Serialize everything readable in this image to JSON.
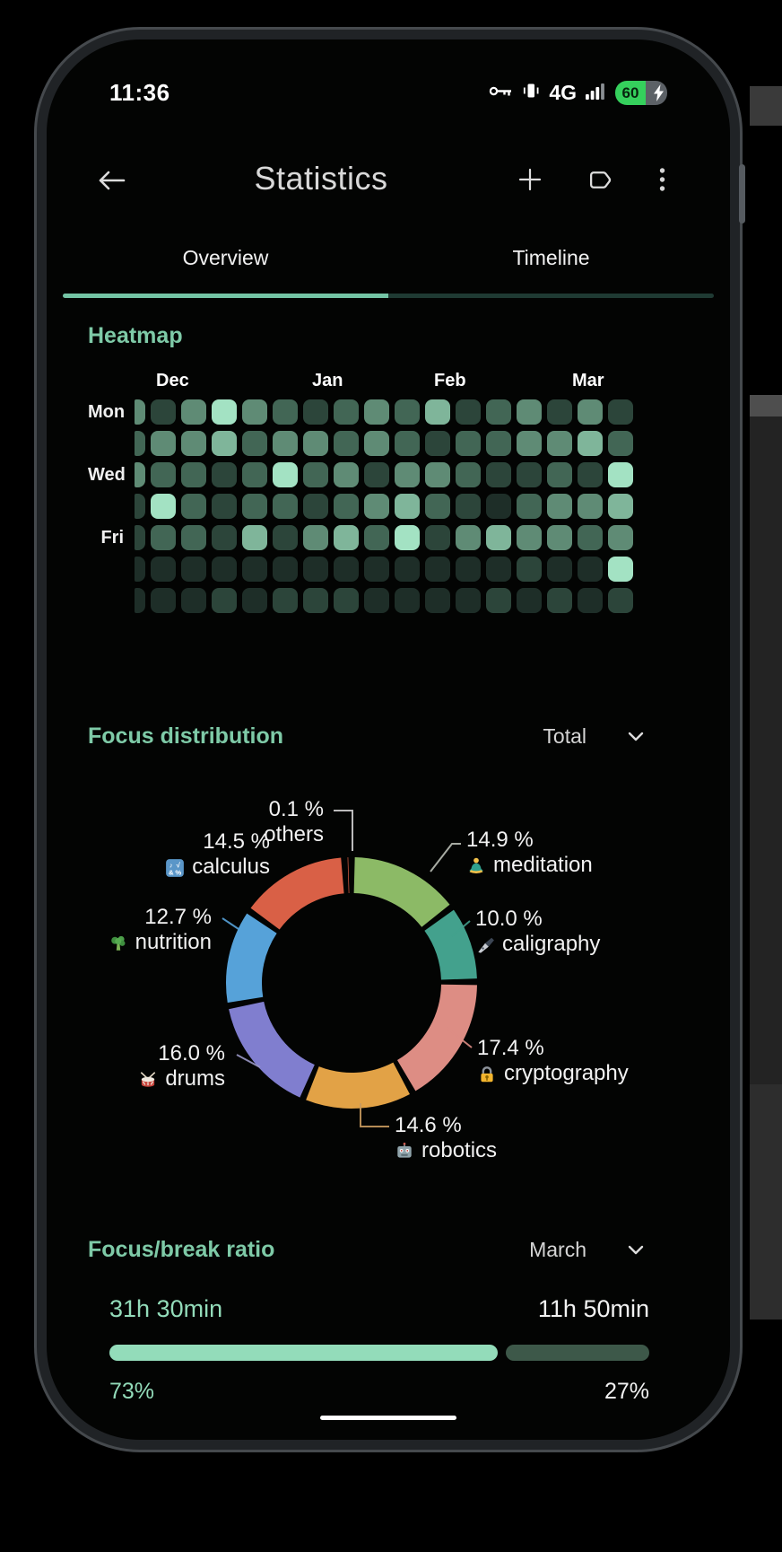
{
  "status_bar": {
    "time": "11:36",
    "network": "4G",
    "battery_percent": "60",
    "icons": [
      "key-icon",
      "vibrate-icon",
      "signal-strength-icon",
      "battery-charging-icon"
    ]
  },
  "header": {
    "title": "Statistics",
    "icons": [
      "back-arrow-icon",
      "add-icon",
      "label-tag-icon",
      "overflow-menu-icon"
    ]
  },
  "tabs": [
    {
      "label": "Overview",
      "active": true
    },
    {
      "label": "Timeline",
      "active": false
    }
  ],
  "sections": {
    "heatmap": {
      "title": "Heatmap"
    },
    "focus_distribution": {
      "title": "Focus distribution",
      "range_selected": "Total"
    },
    "focus_break_ratio": {
      "title": "Focus/break ratio",
      "range_selected": "March",
      "focus_time": "31h 30min",
      "break_time": "11h 50min",
      "focus_percent": "73%",
      "break_percent": "27%"
    }
  },
  "colors": {
    "accent_teal": "#7ecaa7",
    "mint": "#93dcba",
    "tab_indicator": "#74c4a5",
    "battery_green": "#35d05c"
  },
  "chart_data": [
    {
      "type": "heatmap",
      "title": "Heatmap",
      "x_labels": [
        "Dec",
        "Jan",
        "Feb",
        "Mar"
      ],
      "y_labels": [
        "Mon",
        "Wed",
        "Fri"
      ],
      "palette": [
        "#1e2e28",
        "#2c453a",
        "#426655",
        "#5f8b75",
        "#7fb59a",
        "#a3e2c3"
      ],
      "values": [
        [
          3,
          1,
          3,
          5,
          3,
          2,
          1,
          2,
          3,
          2,
          4,
          1,
          2,
          3,
          1,
          3,
          1
        ],
        [
          2,
          3,
          3,
          4,
          2,
          3,
          3,
          2,
          3,
          2,
          1,
          2,
          2,
          3,
          3,
          4,
          2
        ],
        [
          3,
          2,
          2,
          1,
          2,
          5,
          2,
          3,
          1,
          3,
          3,
          2,
          1,
          1,
          2,
          1,
          5
        ],
        [
          1,
          5,
          2,
          1,
          2,
          2,
          1,
          2,
          3,
          4,
          2,
          1,
          0,
          2,
          3,
          3,
          4
        ],
        [
          1,
          2,
          2,
          1,
          4,
          1,
          3,
          4,
          2,
          5,
          1,
          3,
          4,
          3,
          3,
          2,
          3
        ],
        [
          0,
          0,
          0,
          0,
          0,
          0,
          0,
          0,
          0,
          0,
          0,
          0,
          0,
          1,
          0,
          0,
          5
        ],
        [
          0,
          0,
          0,
          1,
          0,
          1,
          1,
          1,
          0,
          0,
          0,
          0,
          1,
          0,
          1,
          0,
          1
        ]
      ]
    },
    {
      "type": "pie",
      "title": "Focus distribution",
      "donut": true,
      "unit": "%",
      "series": [
        {
          "name": "meditation",
          "value": 14.9,
          "color": "#8cba66",
          "icon": "lotus-person-icon"
        },
        {
          "name": "caligraphy",
          "value": 10.0,
          "color": "#43a18d",
          "icon": "fountain-pen-icon"
        },
        {
          "name": "cryptography",
          "value": 17.4,
          "color": "#dd8d84",
          "icon": "locked-with-key-icon"
        },
        {
          "name": "robotics",
          "value": 14.6,
          "color": "#e2a246",
          "icon": "robot-icon"
        },
        {
          "name": "drums",
          "value": 16.0,
          "color": "#807ecf",
          "icon": "drum-icon"
        },
        {
          "name": "nutrition",
          "value": 12.7,
          "color": "#56a2d9",
          "icon": "broccoli-icon"
        },
        {
          "name": "calculus",
          "value": 14.5,
          "color": "#d96046",
          "icon": "input-symbols-icon"
        },
        {
          "name": "others",
          "value": 0.1,
          "color": "#d96046",
          "icon": null
        }
      ]
    },
    {
      "type": "bar",
      "title": "Focus/break ratio",
      "series": [
        {
          "name": "focus",
          "time": "31h 30min",
          "percent": 73,
          "color": "#93dcba"
        },
        {
          "name": "break",
          "time": "11h 50min",
          "percent": 27,
          "color": "#3d5849"
        }
      ]
    }
  ]
}
